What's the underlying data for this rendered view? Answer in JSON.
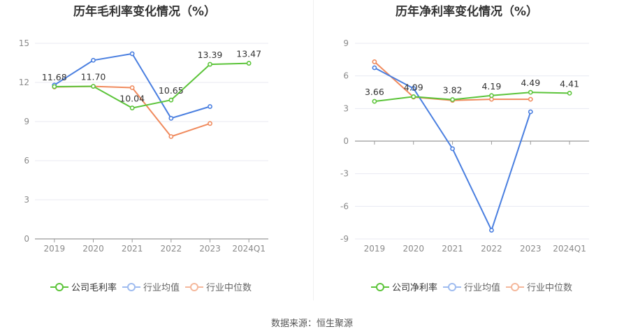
{
  "titles": {
    "left": "历年毛利率变化情况（%）",
    "right": "历年净利率变化情况（%）"
  },
  "source": "数据来源：恒生聚源",
  "colors": {
    "company": "#5cc43a",
    "industry_avg": "#4a7fe0",
    "industry_median": "#f08a5d",
    "grid": "#e8eaf2",
    "axis": "#999999"
  },
  "legend": {
    "left": [
      "公司毛利率",
      "行业均值",
      "行业中位数"
    ],
    "right": [
      "公司净利率",
      "行业均值",
      "行业中位数"
    ]
  },
  "chart_data": [
    {
      "type": "line",
      "title": "历年毛利率变化情况（%）",
      "categories": [
        "2019",
        "2020",
        "2021",
        "2022",
        "2023",
        "2024Q1"
      ],
      "ylim": [
        0,
        15
      ],
      "yticks": [
        0,
        3,
        6,
        9,
        12,
        15
      ],
      "grid": true,
      "legend_position": "bottom",
      "series": [
        {
          "name": "公司毛利率",
          "values": [
            11.68,
            11.7,
            10.04,
            10.65,
            13.39,
            13.47
          ],
          "labels": [
            "11.68",
            "11.70",
            "10.04",
            "10.65",
            "13.39",
            "13.47"
          ]
        },
        {
          "name": "行业均值",
          "values": [
            11.8,
            13.7,
            14.2,
            9.25,
            10.15,
            null
          ]
        },
        {
          "name": "行业中位数",
          "values": [
            11.65,
            11.7,
            11.6,
            7.85,
            8.85,
            null
          ]
        }
      ]
    },
    {
      "type": "line",
      "title": "历年净利率变化情况（%）",
      "categories": [
        "2019",
        "2020",
        "2021",
        "2022",
        "2023",
        "2024Q1"
      ],
      "ylim": [
        -9,
        9
      ],
      "yticks": [
        -9,
        -6,
        -3,
        0,
        3,
        6,
        9
      ],
      "grid": true,
      "legend_position": "bottom",
      "series": [
        {
          "name": "公司净利率",
          "values": [
            3.66,
            4.09,
            3.82,
            4.19,
            4.49,
            4.41
          ],
          "labels": [
            "3.66",
            "4.09",
            "3.82",
            "4.19",
            "4.49",
            "4.41"
          ]
        },
        {
          "name": "行业均值",
          "values": [
            6.75,
            4.85,
            -0.7,
            -8.2,
            2.7,
            null
          ]
        },
        {
          "name": "行业中位数",
          "values": [
            7.3,
            4.05,
            3.75,
            3.85,
            3.85,
            null
          ]
        }
      ]
    }
  ]
}
